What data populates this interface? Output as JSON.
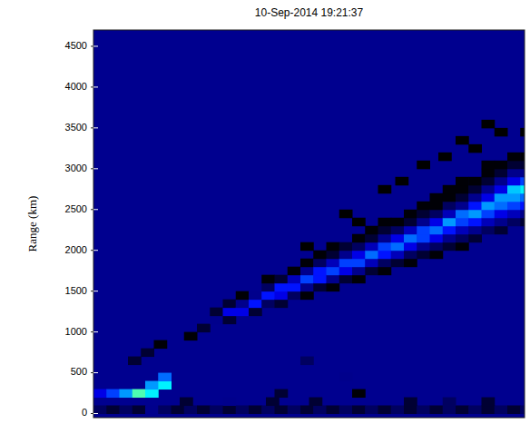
{
  "chart_data": {
    "type": "heatmap",
    "title": "10-Sep-2014 19:21:37",
    "y_label": "Range (km)",
    "xlim": [
      0,
      100
    ],
    "ylim": [
      -50,
      4700
    ],
    "yticks": [
      0,
      500,
      1000,
      1500,
      2000,
      2500,
      3000,
      3500,
      4000,
      4500
    ],
    "tick_labels": "y",
    "grid": false,
    "color_range": [
      0,
      10
    ],
    "cell_size": [
      3,
      100
    ],
    "cells": [
      [
        0,
        0,
        2.5
      ],
      [
        3,
        0,
        2
      ],
      [
        6,
        0,
        2.5
      ],
      [
        9,
        0,
        2
      ],
      [
        12,
        0,
        3
      ],
      [
        15,
        0,
        2.5
      ],
      [
        18,
        0,
        2
      ],
      [
        21,
        0,
        2.5
      ],
      [
        24,
        0,
        2
      ],
      [
        27,
        0,
        2.5
      ],
      [
        30,
        0,
        2
      ],
      [
        33,
        0,
        2.5
      ],
      [
        36,
        0,
        2
      ],
      [
        39,
        0,
        2.5
      ],
      [
        42,
        0,
        2
      ],
      [
        45,
        0,
        2.5
      ],
      [
        48,
        0,
        2
      ],
      [
        51,
        0,
        2.5
      ],
      [
        54,
        0,
        2
      ],
      [
        57,
        0,
        2.5
      ],
      [
        60,
        0,
        2
      ],
      [
        63,
        0,
        2.5
      ],
      [
        66,
        0,
        2
      ],
      [
        69,
        0,
        2.5
      ],
      [
        72,
        0,
        2
      ],
      [
        75,
        0,
        2.5
      ],
      [
        78,
        0,
        2
      ],
      [
        81,
        0,
        2.5
      ],
      [
        84,
        0,
        2
      ],
      [
        87,
        0,
        2.5
      ],
      [
        90,
        0,
        2
      ],
      [
        93,
        0,
        2.5
      ],
      [
        96,
        0,
        2
      ],
      [
        99,
        0,
        2.5
      ],
      [
        20,
        100,
        2
      ],
      [
        30,
        100,
        3
      ],
      [
        40,
        100,
        2
      ],
      [
        50,
        100,
        2
      ],
      [
        72,
        100,
        2
      ],
      [
        81,
        100,
        2.5
      ],
      [
        90,
        100,
        2
      ],
      [
        42,
        200,
        2
      ],
      [
        60,
        200,
        1.5
      ],
      [
        57,
        400,
        3
      ],
      [
        48,
        600,
        2.5
      ],
      [
        0,
        200,
        4
      ],
      [
        3,
        200,
        5
      ],
      [
        6,
        200,
        6
      ],
      [
        9,
        200,
        8
      ],
      [
        12,
        200,
        7
      ],
      [
        12,
        300,
        6
      ],
      [
        15,
        300,
        7
      ],
      [
        15,
        400,
        5.5
      ],
      [
        8,
        600,
        2
      ],
      [
        11,
        700,
        2
      ],
      [
        14,
        800,
        1.5
      ],
      [
        21,
        900,
        1.5
      ],
      [
        24,
        1000,
        2
      ],
      [
        27,
        1100,
        3
      ],
      [
        27,
        1200,
        2
      ],
      [
        30,
        1100,
        2
      ],
      [
        30,
        1200,
        4
      ],
      [
        30,
        1300,
        2
      ],
      [
        33,
        1200,
        4
      ],
      [
        33,
        1300,
        3
      ],
      [
        33,
        1400,
        1.5
      ],
      [
        36,
        1200,
        2
      ],
      [
        36,
        1300,
        4.5
      ],
      [
        36,
        1400,
        3
      ],
      [
        39,
        1300,
        2.5
      ],
      [
        39,
        1400,
        4.5
      ],
      [
        39,
        1500,
        2.5
      ],
      [
        39,
        1600,
        1.5
      ],
      [
        42,
        1300,
        2
      ],
      [
        42,
        1400,
        4
      ],
      [
        42,
        1500,
        4.5
      ],
      [
        42,
        1600,
        2
      ],
      [
        45,
        1400,
        2.5
      ],
      [
        45,
        1500,
        4.5
      ],
      [
        45,
        1600,
        3.5
      ],
      [
        45,
        1700,
        1.5
      ],
      [
        48,
        1400,
        1.5
      ],
      [
        48,
        1500,
        3
      ],
      [
        48,
        1600,
        5
      ],
      [
        48,
        1700,
        3
      ],
      [
        48,
        1800,
        1.5
      ],
      [
        51,
        1500,
        2
      ],
      [
        51,
        1600,
        4.5
      ],
      [
        51,
        1700,
        4.5
      ],
      [
        51,
        1800,
        2.5
      ],
      [
        51,
        1900,
        1.5
      ],
      [
        54,
        1500,
        1.5
      ],
      [
        54,
        1600,
        3
      ],
      [
        54,
        1700,
        5
      ],
      [
        54,
        1800,
        3.5
      ],
      [
        54,
        1900,
        2
      ],
      [
        54,
        2000,
        1.5
      ],
      [
        57,
        1600,
        2
      ],
      [
        57,
        1700,
        4
      ],
      [
        57,
        1800,
        5
      ],
      [
        57,
        1900,
        3
      ],
      [
        57,
        2000,
        2
      ],
      [
        60,
        1600,
        1.5
      ],
      [
        60,
        1700,
        3
      ],
      [
        60,
        1800,
        5
      ],
      [
        60,
        1900,
        4
      ],
      [
        60,
        2000,
        2.5
      ],
      [
        60,
        2100,
        1.5
      ],
      [
        63,
        1700,
        2
      ],
      [
        63,
        1800,
        3.5
      ],
      [
        63,
        1900,
        5.5
      ],
      [
        63,
        2000,
        3.5
      ],
      [
        63,
        2100,
        2
      ],
      [
        63,
        2200,
        1.5
      ],
      [
        66,
        1700,
        1.5
      ],
      [
        66,
        1800,
        2.5
      ],
      [
        66,
        1900,
        4.5
      ],
      [
        66,
        2000,
        5
      ],
      [
        66,
        2100,
        3
      ],
      [
        66,
        2200,
        2
      ],
      [
        66,
        2300,
        1.5
      ],
      [
        69,
        1800,
        2
      ],
      [
        69,
        1900,
        3.5
      ],
      [
        69,
        2000,
        5.5
      ],
      [
        69,
        2100,
        4
      ],
      [
        69,
        2200,
        2.5
      ],
      [
        69,
        2300,
        1.5
      ],
      [
        72,
        1800,
        1.5
      ],
      [
        72,
        1900,
        2.5
      ],
      [
        72,
        2000,
        4
      ],
      [
        72,
        2100,
        5.5
      ],
      [
        72,
        2200,
        3.5
      ],
      [
        72,
        2300,
        2
      ],
      [
        72,
        2400,
        1.5
      ],
      [
        75,
        1900,
        2
      ],
      [
        75,
        2000,
        3
      ],
      [
        75,
        2100,
        5
      ],
      [
        75,
        2200,
        5
      ],
      [
        75,
        2300,
        3
      ],
      [
        75,
        2400,
        2
      ],
      [
        75,
        2500,
        1.5
      ],
      [
        78,
        1900,
        1.5
      ],
      [
        78,
        2000,
        2.5
      ],
      [
        78,
        2100,
        4
      ],
      [
        78,
        2200,
        5.5
      ],
      [
        78,
        2300,
        4
      ],
      [
        78,
        2400,
        2.5
      ],
      [
        78,
        2500,
        1.5
      ],
      [
        78,
        2600,
        1.5
      ],
      [
        81,
        2000,
        2
      ],
      [
        81,
        2100,
        3
      ],
      [
        81,
        2200,
        4.5
      ],
      [
        81,
        2300,
        6
      ],
      [
        81,
        2400,
        3.5
      ],
      [
        81,
        2500,
        2.5
      ],
      [
        81,
        2600,
        1.5
      ],
      [
        81,
        2700,
        1.5
      ],
      [
        84,
        2000,
        1.5
      ],
      [
        84,
        2100,
        2.5
      ],
      [
        84,
        2200,
        3.5
      ],
      [
        84,
        2300,
        5
      ],
      [
        84,
        2400,
        5.5
      ],
      [
        84,
        2500,
        3
      ],
      [
        84,
        2600,
        2
      ],
      [
        84,
        2700,
        1.5
      ],
      [
        84,
        2800,
        1.5
      ],
      [
        87,
        2100,
        2
      ],
      [
        87,
        2200,
        3
      ],
      [
        87,
        2300,
        4.5
      ],
      [
        87,
        2400,
        6
      ],
      [
        87,
        2500,
        4.5
      ],
      [
        87,
        2600,
        3
      ],
      [
        87,
        2700,
        2
      ],
      [
        87,
        2800,
        1.5
      ],
      [
        90,
        2200,
        2.5
      ],
      [
        90,
        2300,
        3.5
      ],
      [
        90,
        2400,
        5
      ],
      [
        90,
        2500,
        6
      ],
      [
        90,
        2600,
        4
      ],
      [
        90,
        2700,
        3
      ],
      [
        90,
        2800,
        2
      ],
      [
        90,
        2900,
        1.5
      ],
      [
        90,
        3000,
        1.5
      ],
      [
        93,
        2200,
        2
      ],
      [
        93,
        2300,
        3
      ],
      [
        93,
        2400,
        4
      ],
      [
        93,
        2500,
        5.5
      ],
      [
        93,
        2600,
        6
      ],
      [
        93,
        2700,
        4
      ],
      [
        93,
        2800,
        3
      ],
      [
        93,
        2900,
        2
      ],
      [
        93,
        3000,
        1.5
      ],
      [
        96,
        2300,
        2.5
      ],
      [
        96,
        2400,
        3.5
      ],
      [
        96,
        2500,
        5
      ],
      [
        96,
        2600,
        6
      ],
      [
        96,
        2700,
        6.5
      ],
      [
        96,
        2800,
        4
      ],
      [
        96,
        2900,
        3
      ],
      [
        96,
        3000,
        2
      ],
      [
        96,
        3100,
        1.5
      ],
      [
        99,
        2300,
        2
      ],
      [
        99,
        2400,
        3
      ],
      [
        99,
        2500,
        4.5
      ],
      [
        99,
        2600,
        5.5
      ],
      [
        99,
        2700,
        7
      ],
      [
        99,
        2800,
        5
      ],
      [
        99,
        2900,
        3
      ],
      [
        99,
        3000,
        2
      ],
      [
        99,
        3100,
        1.5
      ],
      [
        48,
        2000,
        1.2
      ],
      [
        57,
        2400,
        1.2
      ],
      [
        60,
        2300,
        1.2
      ],
      [
        66,
        2700,
        1.2
      ],
      [
        70,
        2800,
        1.2
      ],
      [
        75,
        3000,
        1.2
      ],
      [
        80,
        3100,
        1.2
      ],
      [
        84,
        3300,
        1.2
      ],
      [
        87,
        3200,
        1.2
      ],
      [
        90,
        3500,
        1.2
      ],
      [
        93,
        3400,
        1.2
      ],
      [
        99,
        3400,
        1.2
      ]
    ]
  }
}
